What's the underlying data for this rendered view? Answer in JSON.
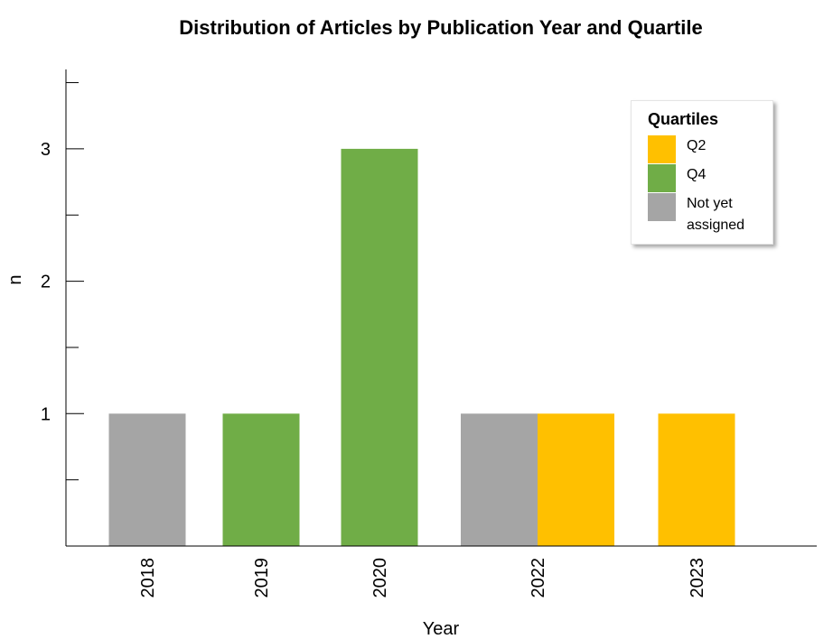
{
  "chart_data": {
    "type": "bar",
    "title": "Distribution of Articles by Publication Year and Quartile",
    "xlabel": "Year",
    "ylabel": "n",
    "ylim": [
      0,
      3.6
    ],
    "yticks": [
      1,
      2,
      3
    ],
    "categories": [
      "2018",
      "2019",
      "2020",
      "2022",
      "2023"
    ],
    "series": [
      {
        "name": "Q2",
        "color": "#FFC000",
        "values": [
          0,
          0,
          0,
          1,
          1
        ]
      },
      {
        "name": "Q4",
        "color": "#70AD47",
        "values": [
          0,
          1,
          3,
          0,
          0
        ]
      },
      {
        "name": "Not yet assigned",
        "color": "#A5A5A5",
        "values": [
          1,
          0,
          0,
          1,
          0
        ]
      }
    ],
    "legend": {
      "title": "Quartiles",
      "position": "top-right"
    },
    "grid": false
  }
}
